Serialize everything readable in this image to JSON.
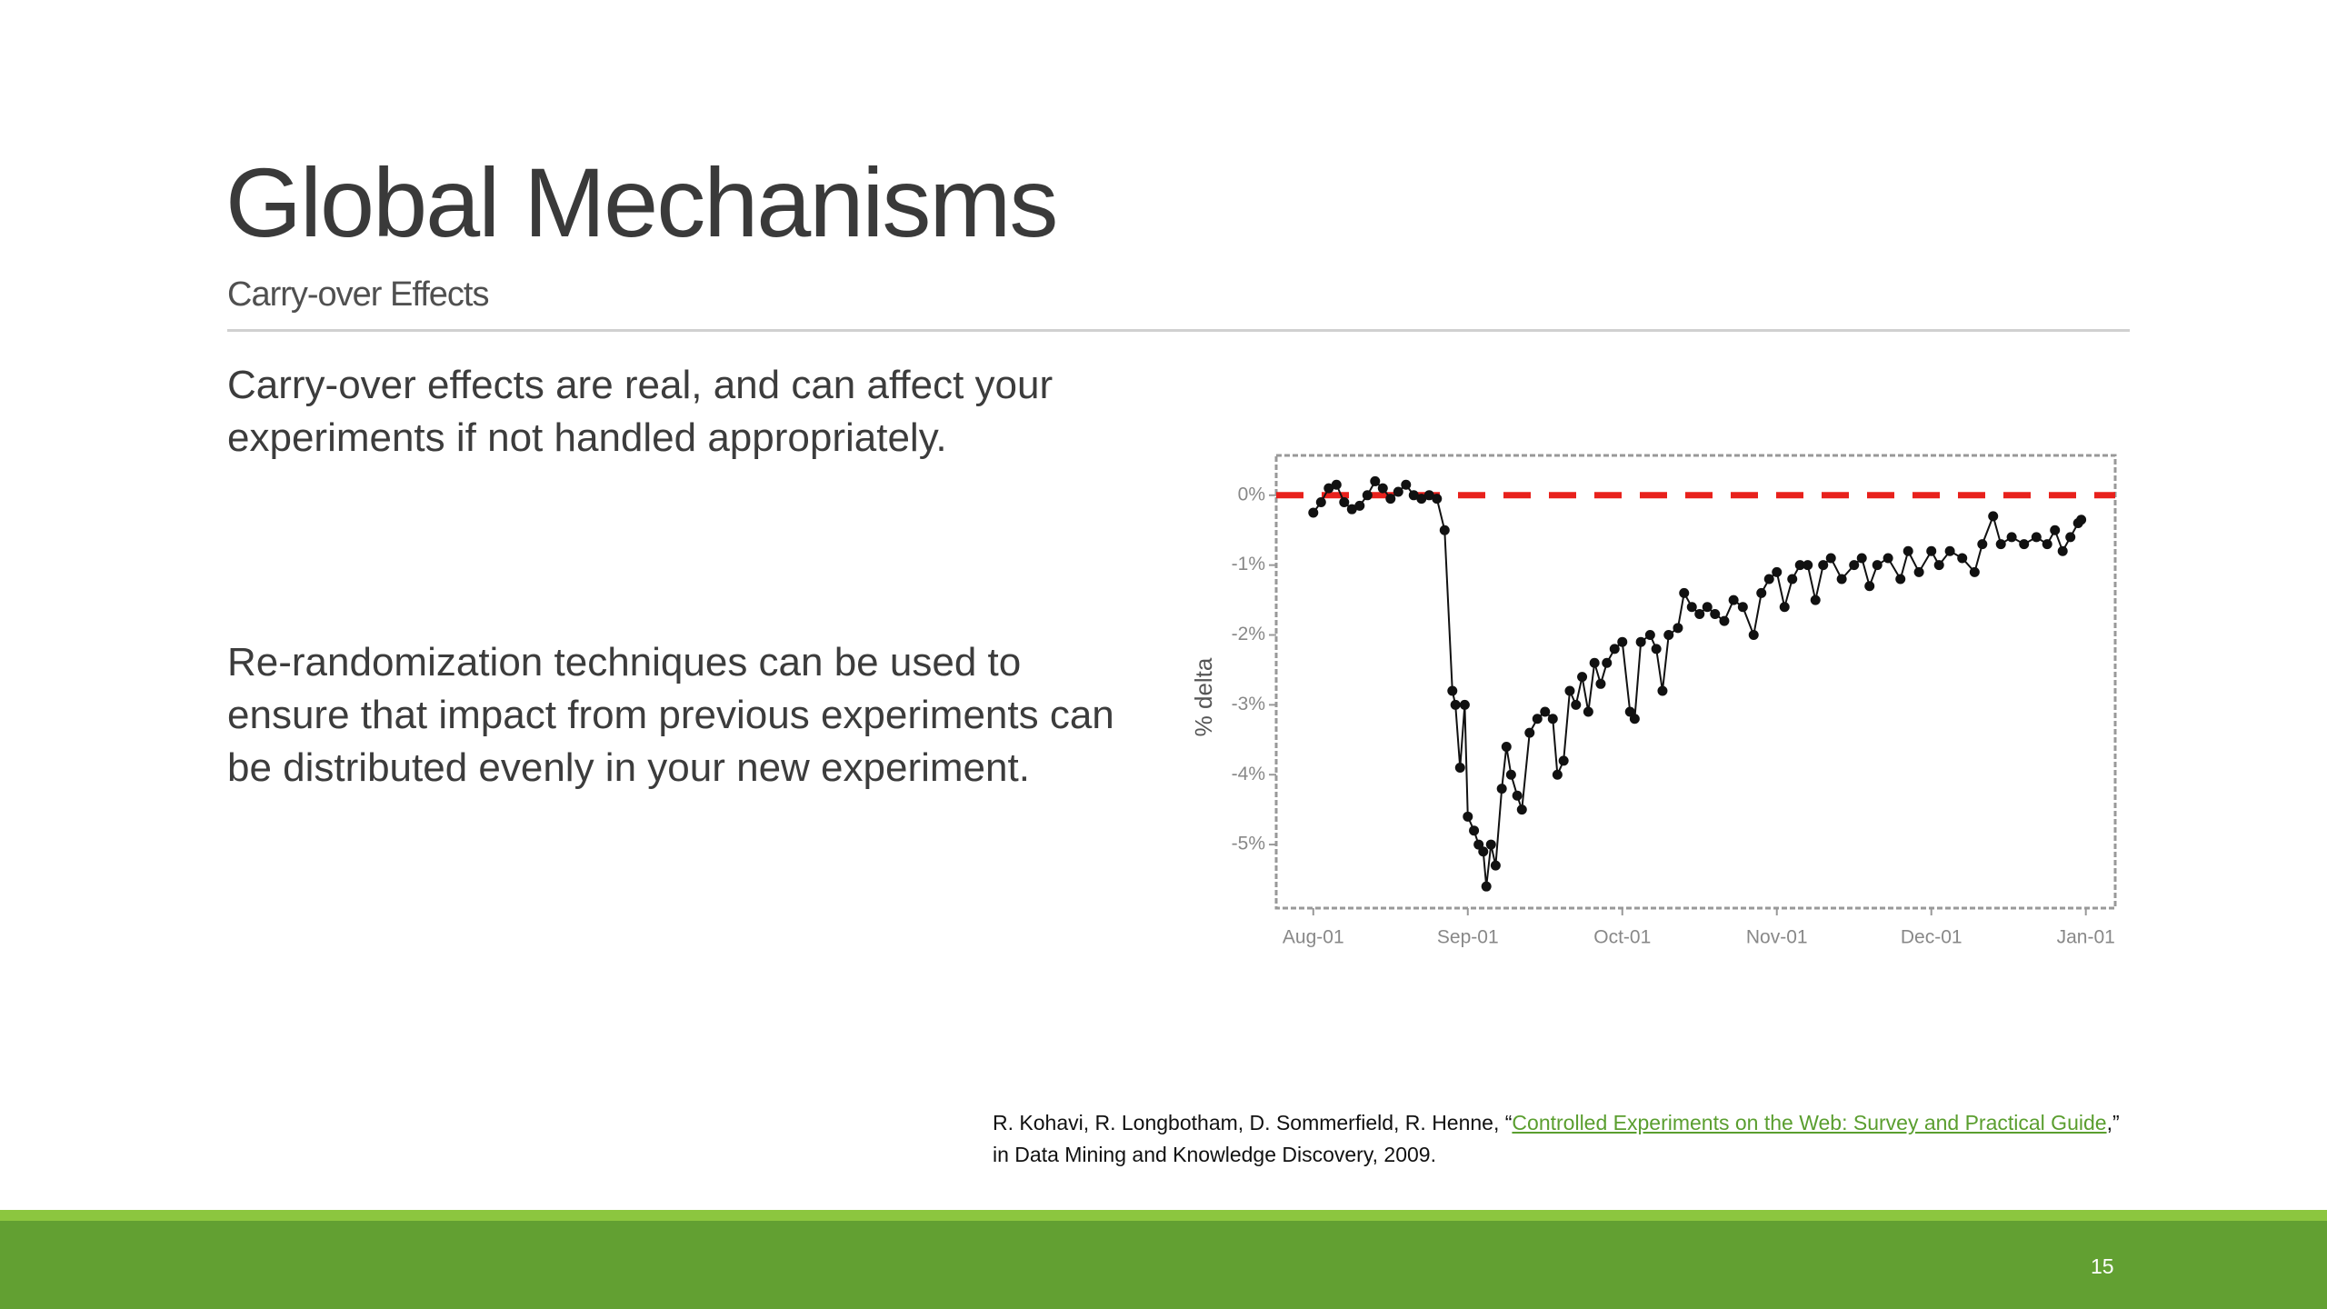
{
  "header": {
    "title": "Global Mechanisms",
    "subtitle": "Carry-over Effects"
  },
  "body": {
    "paragraphs": [
      "Carry-over effects are real, and can affect your experiments if not handled appropriately.",
      "Re-randomization techniques can be used to ensure that impact from previous experiments can be distributed evenly in your new experiment."
    ]
  },
  "chart_data": {
    "type": "line",
    "y_label": "% delta",
    "color": "#111111",
    "markers": true,
    "reference_line": {
      "value": 0,
      "color": "#e8211c"
    },
    "x": [
      0.0,
      0.05,
      0.1,
      0.15,
      0.2,
      0.25,
      0.3,
      0.35,
      0.4,
      0.45,
      0.5,
      0.55,
      0.6,
      0.65,
      0.7,
      0.75,
      0.8,
      0.85,
      0.9,
      0.92,
      0.95,
      0.98,
      1.0,
      1.04,
      1.07,
      1.1,
      1.12,
      1.15,
      1.18,
      1.22,
      1.25,
      1.28,
      1.32,
      1.35,
      1.4,
      1.45,
      1.5,
      1.55,
      1.58,
      1.62,
      1.66,
      1.7,
      1.74,
      1.78,
      1.82,
      1.86,
      1.9,
      1.95,
      2.0,
      2.05,
      2.08,
      2.12,
      2.18,
      2.22,
      2.26,
      2.3,
      2.36,
      2.4,
      2.45,
      2.5,
      2.55,
      2.6,
      2.66,
      2.72,
      2.78,
      2.85,
      2.9,
      2.95,
      3.0,
      3.05,
      3.1,
      3.15,
      3.2,
      3.25,
      3.3,
      3.35,
      3.42,
      3.5,
      3.55,
      3.6,
      3.65,
      3.72,
      3.8,
      3.85,
      3.92,
      4.0,
      4.05,
      4.12,
      4.2,
      4.28,
      4.33,
      4.4,
      4.45,
      4.52,
      4.6,
      4.68,
      4.75,
      4.8,
      4.85,
      4.9,
      4.95,
      4.97
    ],
    "values": [
      -0.25,
      -0.1,
      0.1,
      0.15,
      -0.1,
      -0.2,
      -0.15,
      0.0,
      0.2,
      0.1,
      -0.05,
      0.05,
      0.15,
      0.0,
      -0.05,
      0.0,
      -0.05,
      -0.5,
      -2.8,
      -3.0,
      -3.9,
      -3.0,
      -4.6,
      -4.8,
      -5.0,
      -5.1,
      -5.6,
      -5.0,
      -5.3,
      -4.2,
      -3.6,
      -4.0,
      -4.3,
      -4.5,
      -3.4,
      -3.2,
      -3.1,
      -3.2,
      -4.0,
      -3.8,
      -2.8,
      -3.0,
      -2.6,
      -3.1,
      -2.4,
      -2.7,
      -2.4,
      -2.2,
      -2.1,
      -3.1,
      -3.2,
      -2.1,
      -2.0,
      -2.2,
      -2.8,
      -2.0,
      -1.9,
      -1.4,
      -1.6,
      -1.7,
      -1.6,
      -1.7,
      -1.8,
      -1.5,
      -1.6,
      -2.0,
      -1.4,
      -1.2,
      -1.1,
      -1.6,
      -1.2,
      -1.0,
      -1.0,
      -1.5,
      -1.0,
      -0.9,
      -1.2,
      -1.0,
      -0.9,
      -1.3,
      -1.0,
      -0.9,
      -1.2,
      -0.8,
      -1.1,
      -0.8,
      -1.0,
      -0.8,
      -0.9,
      -1.1,
      -0.7,
      -0.3,
      -0.7,
      -0.6,
      -0.7,
      -0.6,
      -0.7,
      -0.5,
      -0.8,
      -0.6,
      -0.4,
      -0.35
    ],
    "xlim": [
      -0.24,
      5.19
    ],
    "xticks": [
      {
        "value": 0,
        "label": "Aug-01"
      },
      {
        "value": 1,
        "label": "Sep-01"
      },
      {
        "value": 2,
        "label": "Oct-01"
      },
      {
        "value": 3,
        "label": "Nov-01"
      },
      {
        "value": 4,
        "label": "Dec-01"
      },
      {
        "value": 5,
        "label": "Jan-01"
      }
    ],
    "ylim": [
      -5.91,
      0.57
    ],
    "yticks": [
      {
        "value": 0,
        "label": "0%"
      },
      {
        "value": -1,
        "label": "-1%"
      },
      {
        "value": -2,
        "label": "-2%"
      },
      {
        "value": -3,
        "label": "-3%"
      },
      {
        "value": -4,
        "label": "-4%"
      },
      {
        "value": -5,
        "label": "-5%"
      }
    ]
  },
  "citation": {
    "prefix": "R. Kohavi, R. Longbotham, D. Sommerfield, R. Henne, “",
    "link": "Controlled Experiments on the Web: Survey and Practical Guide",
    "suffix": ",” in Data Mining and Knowledge Discovery, 2009."
  },
  "footer": {
    "page_number": "15"
  }
}
